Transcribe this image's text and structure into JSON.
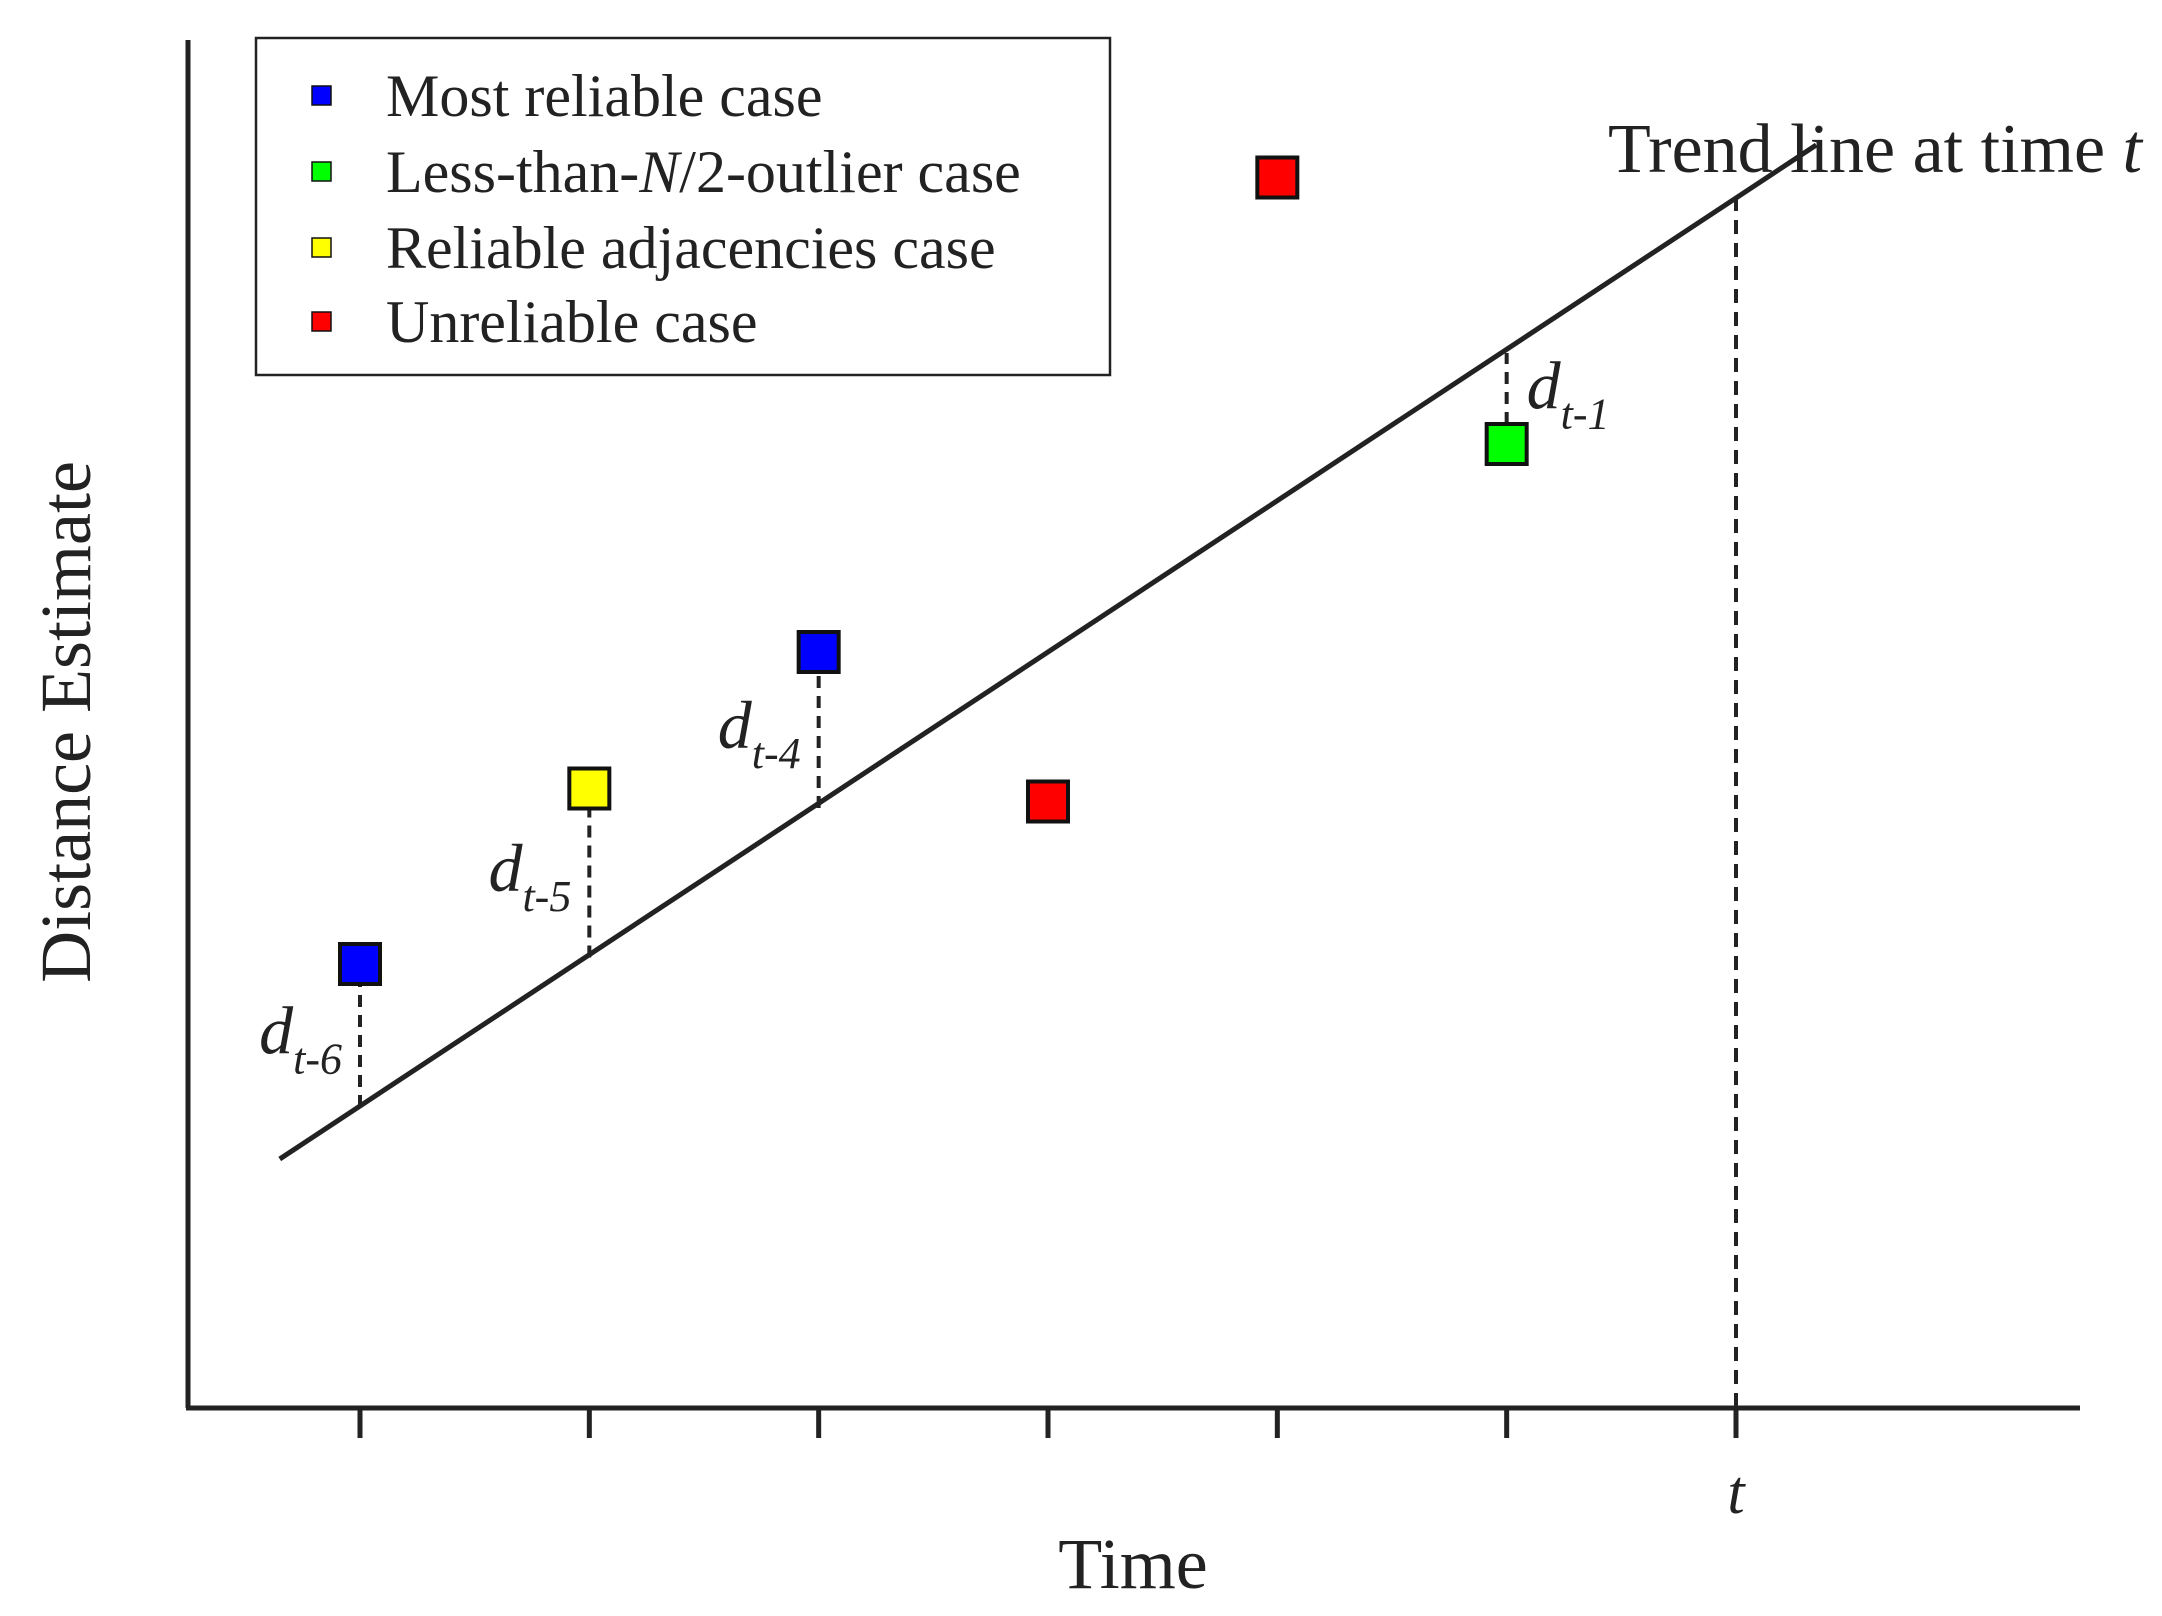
{
  "chart_data": {
    "type": "scatter",
    "title": "",
    "xlabel": "Time",
    "ylabel": "Distance Estimate",
    "x_tick_positions": [
      1,
      2,
      3,
      4,
      5,
      6,
      7
    ],
    "x_tick_labels": [
      "",
      "",
      "",
      "",
      "",
      "",
      "t"
    ],
    "xlim": [
      0.25,
      8.5
    ],
    "ylim": [
      0,
      10
    ],
    "grid": false,
    "legend_position": "top-left",
    "legend": [
      {
        "key": "most_reliable",
        "label_parts": [
          {
            "text": "Most reliable case"
          }
        ],
        "color": "#0000ff"
      },
      {
        "key": "less_than_half_outlier",
        "label_parts": [
          {
            "text": "Less-than-"
          },
          {
            "text": "N",
            "italic": true
          },
          {
            "text": "/2-outlier case"
          }
        ],
        "color": "#00ff00"
      },
      {
        "key": "reliable_adjacencies",
        "label_parts": [
          {
            "text": "Reliable adjacencies case"
          }
        ],
        "color": "#ffff00"
      },
      {
        "key": "unreliable",
        "label_parts": [
          {
            "text": "Unreliable case"
          }
        ],
        "color": "#ff0000"
      }
    ],
    "points": [
      {
        "x": 1,
        "y": 3.2,
        "category": "most_reliable"
      },
      {
        "x": 2,
        "y": 4.55,
        "category": "reliable_adjacencies"
      },
      {
        "x": 3,
        "y": 5.6,
        "category": "most_reliable"
      },
      {
        "x": 4,
        "y": 4.45,
        "category": "unreliable"
      },
      {
        "x": 5,
        "y": 9.25,
        "category": "unreliable"
      },
      {
        "x": 6,
        "y": 7.2,
        "category": "less_than_half_outlier"
      }
    ],
    "trend_line": {
      "label_parts": [
        {
          "text": "Trend line at time "
        },
        {
          "text": "t",
          "italic": true
        }
      ],
      "start": {
        "x": 0.65,
        "y": 1.7
      },
      "end": {
        "x": 7.35,
        "y": 9.5
      }
    },
    "residuals": [
      {
        "x": 1,
        "trend_y": 2.1,
        "point_y": 3.2,
        "label": "d",
        "subscript": "t-6",
        "side": "left"
      },
      {
        "x": 2,
        "trend_y": 3.25,
        "point_y": 4.55,
        "label": "d",
        "subscript": "t-5",
        "side": "left"
      },
      {
        "x": 3,
        "trend_y": 4.4,
        "point_y": 5.6,
        "label": "d",
        "subscript": "t-4",
        "side": "left"
      },
      {
        "x": 6,
        "trend_y": 7.9,
        "point_y": 7.2,
        "label": "d",
        "subscript": "t-1",
        "side": "right"
      }
    ],
    "time_marker": {
      "x": 7,
      "y_top": 9.1
    }
  },
  "colors": {
    "ink": "#222222",
    "point_outline": "#111111"
  }
}
